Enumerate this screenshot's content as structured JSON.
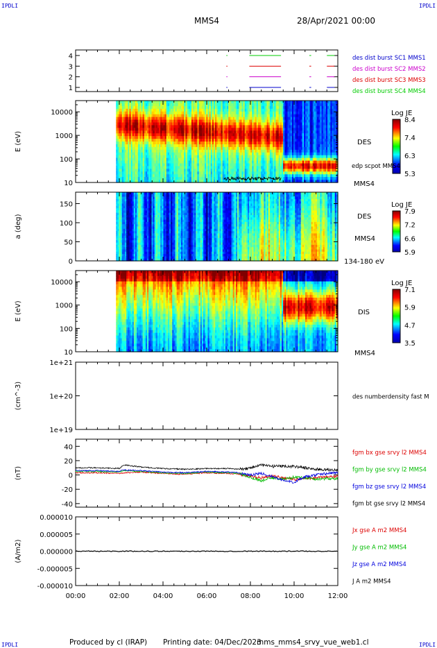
{
  "header": {
    "corner_tl": "IPDLI",
    "corner_tr": "IPDLI",
    "corner_bl": "IPDLI",
    "corner_br": "IPDLI",
    "spacecraft": "MMS4",
    "date": "28/Apr/2021 00:00"
  },
  "footer": {
    "produced": "Produced by cl (IRAP)",
    "printed": "Printing date: 04/Dec/2023",
    "file": "mms_mms4_srvy_vue_web1.cl"
  },
  "colors": {
    "mms1": "#00cc00",
    "mms2": "#cc00cc",
    "mms3": "#dd0000",
    "mms4": "#0000cc",
    "bx": "#dd0000",
    "by": "#00bb00",
    "bz": "#0000dd",
    "bt": "#000000"
  },
  "x_axis": {
    "ticks": [
      "00:00",
      "02:00",
      "04:00",
      "06:00",
      "08:00",
      "10:00",
      "12:00"
    ],
    "range_hours": [
      0,
      12
    ]
  },
  "chart_data": [
    {
      "type": "line",
      "panel": "burst-availability",
      "yticks": [
        "1",
        "2",
        "3",
        "4"
      ],
      "legend": [
        {
          "name": "des dist burst SC1 MMS1",
          "color": "#0000cc"
        },
        {
          "name": "des dist burst SC2 MMS2",
          "color": "#cc00cc"
        },
        {
          "name": "des dist burst SC3 MMS3",
          "color": "#dd0000"
        },
        {
          "name": "des dist burst SC4 MMS4",
          "color": "#00cc00"
        }
      ],
      "intervals_hours": [
        [
          6.9,
          6.95
        ],
        [
          7.95,
          9.4
        ],
        [
          10.7,
          10.78
        ],
        [
          11.5,
          11.85
        ]
      ]
    },
    {
      "type": "heatmap",
      "panel": "des-energy",
      "ylabel": "E (eV)",
      "yscale": "log",
      "ylim": [
        10,
        30000
      ],
      "yticks": [
        "10",
        "100",
        "1000",
        "10000"
      ],
      "colorbar": {
        "title": "Log JE",
        "ticks": [
          "8.4",
          "7.4",
          "6.3",
          "5.3"
        ],
        "range": [
          5.3,
          8.4
        ]
      },
      "labels": [
        "DES",
        "edp scpot MMS4",
        "MMS4"
      ],
      "data_start_hours": 1.85
    },
    {
      "type": "heatmap",
      "panel": "des-pitch-angle",
      "ylabel": "a (deg)",
      "ylim": [
        0,
        180
      ],
      "yticks": [
        "0",
        "50",
        "100",
        "150"
      ],
      "colorbar": {
        "title": "Log JE",
        "ticks": [
          "7.9",
          "7.2",
          "6.6",
          "5.9"
        ],
        "range": [
          5.9,
          7.9
        ]
      },
      "labels": [
        "DES",
        "MMS4",
        "134-180 eV"
      ],
      "data_start_hours": 1.85
    },
    {
      "type": "heatmap",
      "panel": "dis-energy",
      "ylabel": "E (eV)",
      "yscale": "log",
      "ylim": [
        10,
        30000
      ],
      "yticks": [
        "10",
        "100",
        "1000",
        "10000"
      ],
      "colorbar": {
        "title": "Log JE",
        "ticks": [
          "7.1",
          "5.9",
          "4.7",
          "3.5"
        ],
        "range": [
          3.5,
          7.1
        ]
      },
      "labels": [
        "DIS",
        "MMS4"
      ],
      "data_start_hours": 1.85
    },
    {
      "type": "line",
      "panel": "density",
      "ylabel": "(cm^-3)",
      "yscale": "log",
      "yticks": [
        "1e+19",
        "1e+20",
        "1e+21"
      ],
      "legend": [
        {
          "name": "des numberdensity fast M",
          "color": "#000000"
        }
      ],
      "series": []
    },
    {
      "type": "line",
      "panel": "magnetic-field",
      "ylabel": "(nT)",
      "ylim": [
        -45,
        50
      ],
      "yticks": [
        "-40",
        "-20",
        "0",
        "20",
        "40"
      ],
      "legend": [
        {
          "name": "fgm bx gse srvy l2 MMS4",
          "color": "#dd0000"
        },
        {
          "name": "fgm by gse srvy l2 MMS4",
          "color": "#00bb00"
        },
        {
          "name": "fgm bz gse srvy l2 MMS4",
          "color": "#0000dd"
        },
        {
          "name": "fgm bt gse srvy l2 MMS4",
          "color": "#000000"
        }
      ],
      "x": [
        0,
        1,
        2,
        2.2,
        3,
        4,
        5,
        6,
        7,
        7.5,
        8,
        8.5,
        9,
        9.5,
        10,
        10.5,
        11,
        11.5,
        12
      ],
      "series": [
        {
          "name": "fgm bx gse srvy l2 MMS4",
          "values": [
            3,
            3,
            2,
            3,
            4,
            2,
            1,
            3,
            2,
            1,
            -2,
            -4,
            -2,
            -4,
            -6,
            -5,
            -4,
            -3,
            -2
          ]
        },
        {
          "name": "fgm by gse srvy l2 MMS4",
          "values": [
            5,
            5,
            4,
            6,
            5,
            3,
            2,
            4,
            3,
            2,
            -3,
            -8,
            -4,
            -6,
            -3,
            -4,
            -6,
            -5,
            -5
          ]
        },
        {
          "name": "fgm bz gse srvy l2 MMS4",
          "values": [
            6,
            6,
            5,
            7,
            6,
            4,
            3,
            5,
            4,
            3,
            0,
            2,
            -2,
            -8,
            -10,
            -3,
            0,
            2,
            3
          ]
        },
        {
          "name": "fgm bt gse srvy l2 MMS4",
          "values": [
            10,
            10,
            9,
            14,
            11,
            9,
            8,
            9,
            9,
            8,
            10,
            14,
            12,
            12,
            12,
            10,
            8,
            7,
            7
          ]
        }
      ]
    },
    {
      "type": "line",
      "panel": "current-density",
      "ylabel": "(A/m2)",
      "ylim": [
        -1e-05,
        1e-05
      ],
      "yticks": [
        "-0.000010",
        "-0.000005",
        "0.000000",
        "0.000005",
        "0.000010"
      ],
      "legend": [
        {
          "name": "Jx gse A m2 MMS4",
          "color": "#dd0000"
        },
        {
          "name": "Jy gse A m2 MMS4",
          "color": "#00bb00"
        },
        {
          "name": "Jz gse A m2 MMS4",
          "color": "#0000dd"
        },
        {
          "name": "J A m2 MMS4",
          "color": "#000000"
        }
      ],
      "x": [
        0.0,
        12.0
      ],
      "series": [
        {
          "name": "J A m2 MMS4",
          "values": [
            0.0,
            0.0
          ]
        }
      ]
    }
  ]
}
